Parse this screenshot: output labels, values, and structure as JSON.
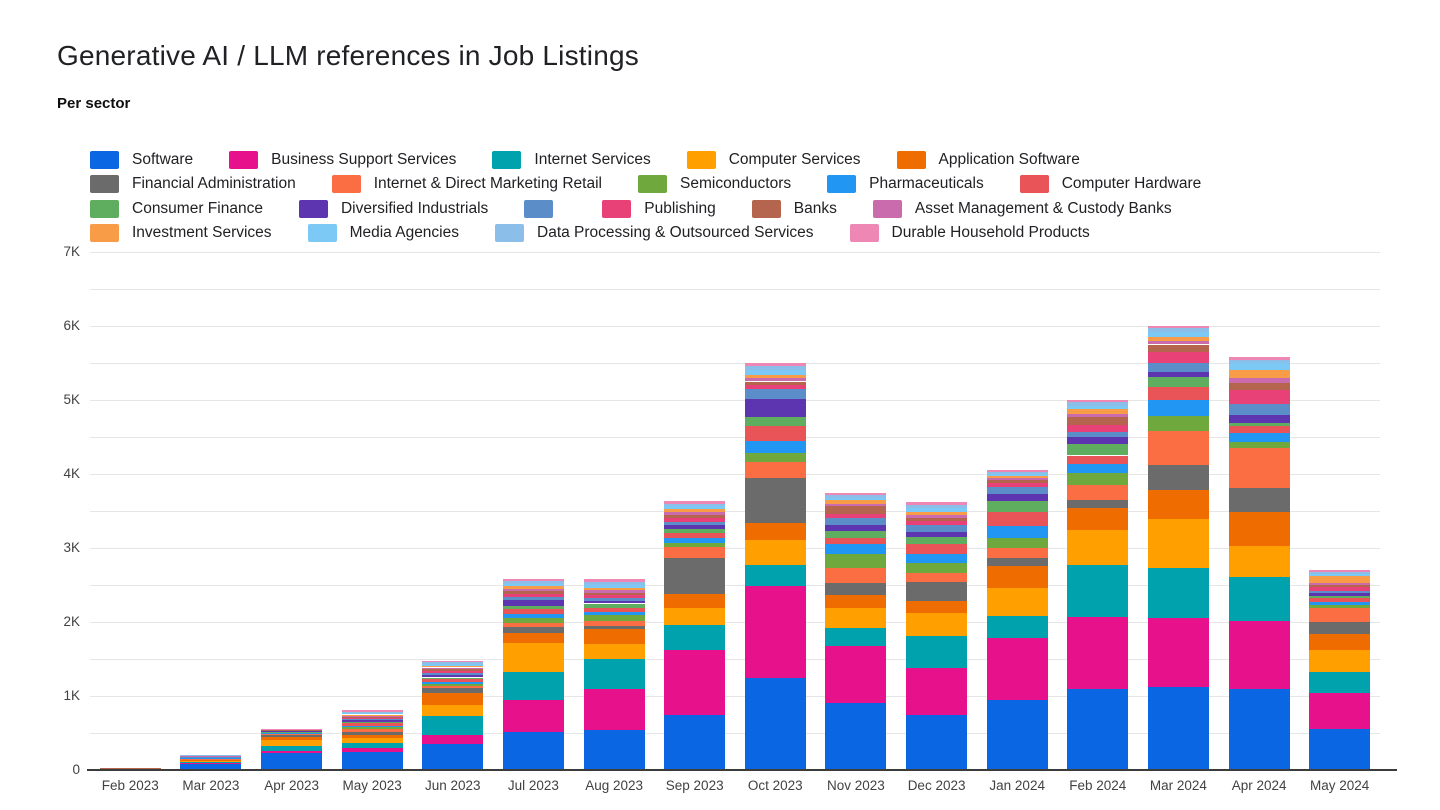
{
  "title": "Generative AI / LLM references in Job Listings",
  "subtitle": "Per sector",
  "legend_rows": [
    [
      0,
      1,
      2,
      3,
      4
    ],
    [
      5,
      6,
      7,
      8,
      9
    ],
    [
      10,
      11,
      12,
      13,
      14,
      15
    ],
    [
      16,
      17,
      18,
      19
    ]
  ],
  "chart_data": {
    "type": "bar",
    "stacked": true,
    "title": "Generative AI / LLM references in Job Listings",
    "subtitle": "Per sector",
    "xlabel": "",
    "ylabel": "",
    "ylim": [
      0,
      7000
    ],
    "grid_interval": 500,
    "legend_position": "top",
    "y_ticks": [
      "0",
      "1K",
      "2K",
      "3K",
      "4K",
      "5K",
      "6K",
      "7K"
    ],
    "categories": [
      "Feb 2023",
      "Mar 2023",
      "Apr 2023",
      "May 2023",
      "Jun 2023",
      "Jul 2023",
      "Aug 2023",
      "Sep 2023",
      "Oct 2023",
      "Nov 2023",
      "Dec 2023",
      "Jan 2024",
      "Feb 2024",
      "Mar 2024",
      "Apr 2024",
      "May 2024"
    ],
    "series": [
      {
        "name": "Software",
        "color": "#0b66e4",
        "values": [
          6,
          75,
          230,
          240,
          345,
          520,
          540,
          745,
          1240,
          910,
          740,
          950,
          1100,
          1120,
          1090,
          560
        ]
      },
      {
        "name": "Business Support Services",
        "color": "#e8118c",
        "values": [
          2,
          15,
          30,
          60,
          125,
          420,
          550,
          880,
          1250,
          765,
          640,
          830,
          970,
          930,
          930,
          480
        ]
      },
      {
        "name": "Internet Services",
        "color": "#00a2ae",
        "values": [
          2,
          20,
          70,
          60,
          255,
          390,
          415,
          330,
          280,
          250,
          430,
          300,
          700,
          680,
          590,
          290
        ]
      },
      {
        "name": "Computer Services",
        "color": "#ffa000",
        "values": [
          2,
          15,
          75,
          70,
          160,
          385,
          195,
          240,
          340,
          260,
          315,
          380,
          470,
          665,
          420,
          290
        ]
      },
      {
        "name": "Application Software",
        "color": "#ef6c00",
        "values": [
          1,
          10,
          35,
          40,
          150,
          140,
          205,
          190,
          225,
          180,
          155,
          300,
          295,
          385,
          460,
          215
        ]
      },
      {
        "name": "Financial Administration",
        "color": "#6b6b6b",
        "values": [
          1,
          8,
          35,
          50,
          70,
          75,
          45,
          475,
          610,
          165,
          260,
          110,
          120,
          345,
          315,
          165
        ]
      },
      {
        "name": "Internet & Direct Marketing Retail",
        "color": "#fb6d43",
        "values": [
          1,
          8,
          15,
          40,
          30,
          60,
          60,
          150,
          215,
          205,
          125,
          135,
          195,
          450,
          540,
          195
        ]
      },
      {
        "name": "Semiconductors",
        "color": "#6fa83c",
        "values": [
          0,
          5,
          5,
          20,
          25,
          70,
          80,
          60,
          120,
          180,
          135,
          135,
          165,
          205,
          90,
          35
        ]
      },
      {
        "name": "Pharmaceuticals",
        "color": "#2196f3",
        "values": [
          1,
          6,
          8,
          20,
          30,
          50,
          45,
          70,
          170,
          135,
          120,
          160,
          125,
          225,
          125,
          40
        ]
      },
      {
        "name": "Computer Hardware",
        "color": "#e85458",
        "values": [
          3,
          8,
          10,
          30,
          35,
          65,
          55,
          65,
          200,
          90,
          135,
          180,
          110,
          165,
          90,
          55
        ]
      },
      {
        "name": "Consumer Finance",
        "color": "#5fae5f",
        "values": [
          0,
          4,
          5,
          15,
          25,
          35,
          60,
          55,
          125,
          90,
          100,
          150,
          150,
          135,
          45,
          30
        ]
      },
      {
        "name": "Diversified Industrials",
        "color": "#5e35b1",
        "values": [
          0,
          4,
          15,
          25,
          30,
          85,
          35,
          45,
          235,
          75,
          55,
          105,
          105,
          75,
          105,
          35
        ]
      },
      {
        "name": "",
        "color": "#5b8dc8",
        "values": [
          0,
          3,
          3,
          15,
          25,
          45,
          35,
          40,
          135,
          100,
          100,
          90,
          60,
          115,
          150,
          35
        ]
      },
      {
        "name": "Publishing",
        "color": "#e84178",
        "values": [
          1,
          4,
          5,
          20,
          35,
          40,
          40,
          55,
          60,
          60,
          50,
          60,
          100,
          150,
          190,
          45
        ]
      },
      {
        "name": "Banks",
        "color": "#b5654e",
        "values": [
          4,
          8,
          5,
          15,
          20,
          35,
          35,
          45,
          45,
          100,
          45,
          30,
          105,
          105,
          90,
          25
        ]
      },
      {
        "name": "Asset Management & Custody Banks",
        "color": "#ca6bae",
        "values": [
          0,
          3,
          3,
          15,
          25,
          35,
          35,
          40,
          45,
          35,
          40,
          30,
          45,
          45,
          65,
          30
        ]
      },
      {
        "name": "Investment Services",
        "color": "#f89c47",
        "values": [
          0,
          3,
          3,
          15,
          20,
          30,
          35,
          45,
          45,
          45,
          45,
          25,
          60,
          60,
          110,
          90
        ]
      },
      {
        "name": "Media Agencies",
        "color": "#7cc9f6",
        "values": [
          0,
          2,
          3,
          20,
          25,
          35,
          40,
          35,
          60,
          35,
          45,
          30,
          40,
          60,
          95,
          35
        ]
      },
      {
        "name": "Data Processing & Outsourced Services",
        "color": "#8bbfea",
        "values": [
          0,
          2,
          3,
          20,
          25,
          35,
          40,
          35,
          55,
          30,
          45,
          30,
          60,
          60,
          35,
          30
        ]
      },
      {
        "name": "Durable Household Products",
        "color": "#ef87b5",
        "values": [
          1,
          1,
          2,
          20,
          20,
          30,
          35,
          30,
          45,
          30,
          45,
          25,
          30,
          30,
          40,
          25
        ]
      }
    ]
  }
}
